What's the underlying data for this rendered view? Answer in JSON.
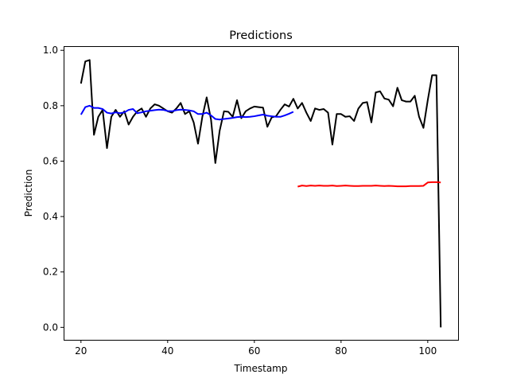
{
  "chart_data": {
    "type": "line",
    "title": "Predictions",
    "xlabel": "Timestamp",
    "ylabel": "Prediction",
    "xlim": [
      16.0,
      107.0
    ],
    "ylim": [
      -0.045,
      1.015
    ],
    "xticks": [
      20,
      40,
      60,
      80,
      100
    ],
    "yticks": [
      0.0,
      0.2,
      0.4,
      0.6,
      0.8,
      1.0
    ],
    "xtick_labels": [
      "20",
      "40",
      "60",
      "80",
      "100"
    ],
    "ytick_labels": [
      "0.0",
      "0.2",
      "0.4",
      "0.6",
      "0.8",
      "1.0"
    ],
    "grid": false,
    "series": [
      {
        "color": "#000000",
        "x": [
          20,
          21,
          22,
          23,
          24,
          25,
          26,
          27,
          28,
          29,
          30,
          31,
          32,
          33,
          34,
          35,
          36,
          37,
          38,
          39,
          40,
          41,
          42,
          43,
          44,
          45,
          46,
          47,
          48,
          49,
          50,
          51,
          52,
          53,
          54,
          55,
          56,
          57,
          58,
          59,
          60,
          61,
          62,
          63,
          64,
          65,
          66,
          67,
          68,
          69,
          70,
          71,
          72,
          73,
          74,
          75,
          76,
          77,
          78,
          79,
          80,
          81,
          82,
          83,
          84,
          85,
          86,
          87,
          88,
          89,
          90,
          91,
          92,
          93,
          94,
          95,
          96,
          97,
          98,
          99,
          100,
          101,
          102,
          103
        ],
        "values": [
          0.88,
          0.96,
          0.965,
          0.695,
          0.76,
          0.785,
          0.647,
          0.76,
          0.785,
          0.76,
          0.78,
          0.732,
          0.76,
          0.78,
          0.79,
          0.76,
          0.79,
          0.805,
          0.8,
          0.79,
          0.78,
          0.775,
          0.79,
          0.81,
          0.77,
          0.78,
          0.74,
          0.663,
          0.76,
          0.83,
          0.75,
          0.593,
          0.71,
          0.78,
          0.778,
          0.76,
          0.82,
          0.755,
          0.78,
          0.79,
          0.797,
          0.795,
          0.793,
          0.724,
          0.758,
          0.762,
          0.785,
          0.805,
          0.797,
          0.825,
          0.79,
          0.81,
          0.775,
          0.745,
          0.79,
          0.785,
          0.788,
          0.775,
          0.66,
          0.77,
          0.77,
          0.76,
          0.762,
          0.745,
          0.79,
          0.81,
          0.813,
          0.74,
          0.848,
          0.852,
          0.826,
          0.822,
          0.798,
          0.865,
          0.82,
          0.815,
          0.815,
          0.836,
          0.76,
          0.72,
          0.82,
          0.91,
          0.91,
          0.0
        ]
      },
      {
        "color": "#0000ff",
        "x": [
          20,
          21,
          22,
          23,
          24,
          25,
          26,
          27,
          28,
          29,
          30,
          31,
          32,
          33,
          34,
          35,
          36,
          37,
          38,
          39,
          40,
          41,
          42,
          43,
          44,
          45,
          46,
          47,
          48,
          49,
          50,
          51,
          52,
          53,
          54,
          55,
          56,
          57,
          58,
          59,
          60,
          61,
          62,
          63,
          64,
          65,
          66,
          67,
          68,
          69
        ],
        "values": [
          0.768,
          0.795,
          0.8,
          0.792,
          0.792,
          0.788,
          0.775,
          0.772,
          0.776,
          0.773,
          0.776,
          0.785,
          0.788,
          0.773,
          0.776,
          0.78,
          0.782,
          0.784,
          0.786,
          0.785,
          0.781,
          0.78,
          0.784,
          0.786,
          0.785,
          0.783,
          0.78,
          0.77,
          0.77,
          0.775,
          0.765,
          0.752,
          0.75,
          0.752,
          0.754,
          0.756,
          0.759,
          0.76,
          0.759,
          0.76,
          0.762,
          0.765,
          0.768,
          0.764,
          0.762,
          0.76,
          0.76,
          0.765,
          0.771,
          0.778
        ]
      },
      {
        "color": "#ff0000",
        "x": [
          70,
          71,
          72,
          73,
          74,
          75,
          76,
          77,
          78,
          79,
          80,
          81,
          82,
          83,
          84,
          85,
          86,
          87,
          88,
          89,
          90,
          91,
          92,
          93,
          94,
          95,
          96,
          97,
          98,
          99,
          100,
          101,
          102,
          103
        ],
        "values": [
          0.508,
          0.512,
          0.51,
          0.512,
          0.511,
          0.512,
          0.511,
          0.511,
          0.512,
          0.51,
          0.511,
          0.512,
          0.511,
          0.51,
          0.51,
          0.511,
          0.511,
          0.511,
          0.512,
          0.511,
          0.51,
          0.511,
          0.51,
          0.509,
          0.509,
          0.509,
          0.51,
          0.51,
          0.51,
          0.511,
          0.523,
          0.524,
          0.524,
          0.523
        ]
      }
    ]
  }
}
